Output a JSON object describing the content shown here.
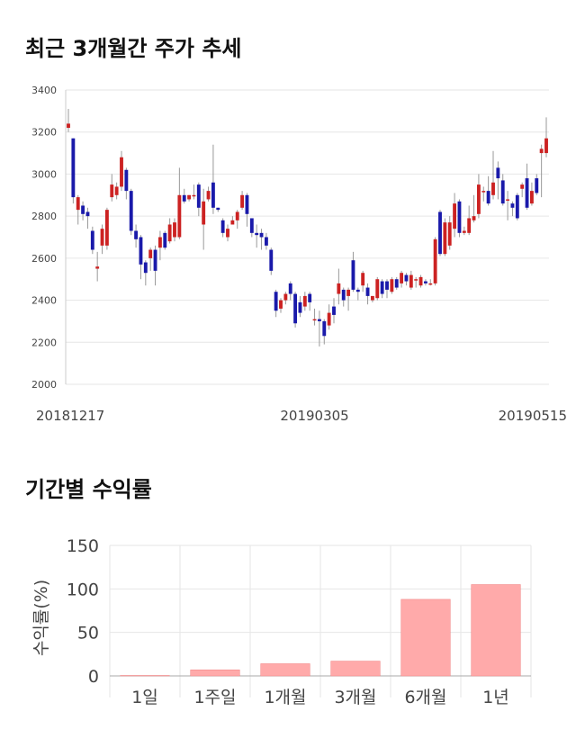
{
  "sections": {
    "price_title": "최근 3개월간 주가 추세",
    "returns_title": "기간별 수익률"
  },
  "colors": {
    "up": "#cc2222",
    "down": "#1a1aaa",
    "wick": "#999999",
    "grid": "#e6e6e6",
    "bar": "#ffaaaa",
    "bar_stroke": "#f08080"
  },
  "chart_data": [
    {
      "type": "candlestick",
      "title": "최근 3개월간 주가 추세",
      "y_ticks": [
        2000,
        2200,
        2400,
        2600,
        2800,
        3000,
        3200,
        3400
      ],
      "ylim": [
        2000,
        3400
      ],
      "x_labels": [
        "20181217",
        "20190305",
        "20190515"
      ],
      "x_label_index": [
        0,
        51,
        99
      ],
      "candles": [
        [
          3220,
          3240,
          3310,
          3200
        ],
        [
          3170,
          2890,
          3170,
          2860
        ],
        [
          2830,
          2890,
          2900,
          2760
        ],
        [
          2850,
          2810,
          2870,
          2780
        ],
        [
          2820,
          2800,
          2840,
          2740
        ],
        [
          2730,
          2640,
          2750,
          2620
        ],
        [
          2550,
          2560,
          2630,
          2490
        ],
        [
          2660,
          2740,
          2760,
          2620
        ],
        [
          2660,
          2830,
          2840,
          2640
        ],
        [
          2890,
          2950,
          3000,
          2870
        ],
        [
          2900,
          2940,
          2960,
          2880
        ],
        [
          2940,
          3080,
          3110,
          2920
        ],
        [
          3020,
          2920,
          3030,
          2880
        ],
        [
          2920,
          2730,
          2930,
          2710
        ],
        [
          2730,
          2690,
          2760,
          2650
        ],
        [
          2700,
          2570,
          2710,
          2500
        ],
        [
          2580,
          2530,
          2590,
          2470
        ],
        [
          2600,
          2640,
          2650,
          2540
        ],
        [
          2640,
          2540,
          2660,
          2470
        ],
        [
          2650,
          2700,
          2730,
          2590
        ],
        [
          2720,
          2650,
          2730,
          2640
        ],
        [
          2680,
          2760,
          2790,
          2670
        ],
        [
          2700,
          2770,
          2790,
          2680
        ],
        [
          2700,
          2900,
          3030,
          2690
        ],
        [
          2900,
          2870,
          2930,
          2860
        ],
        [
          2880,
          2900,
          2900,
          2870
        ],
        [
          2900,
          2900,
          2950,
          2880
        ],
        [
          2950,
          2840,
          2960,
          2800
        ],
        [
          2760,
          2870,
          2930,
          2640
        ],
        [
          2880,
          2920,
          2940,
          2870
        ],
        [
          2960,
          2840,
          3140,
          2810
        ],
        [
          2840,
          2830,
          2840,
          2820
        ],
        [
          2780,
          2720,
          2790,
          2700
        ],
        [
          2700,
          2740,
          2760,
          2680
        ],
        [
          2760,
          2780,
          2800,
          2760
        ],
        [
          2780,
          2820,
          2830,
          2740
        ],
        [
          2840,
          2900,
          2920,
          2830
        ],
        [
          2900,
          2810,
          2910,
          2750
        ],
        [
          2790,
          2720,
          2790,
          2700
        ],
        [
          2720,
          2710,
          2760,
          2650
        ],
        [
          2720,
          2700,
          2740,
          2640
        ],
        [
          2700,
          2660,
          2720,
          2640
        ],
        [
          2640,
          2540,
          2650,
          2520
        ],
        [
          2440,
          2350,
          2450,
          2320
        ],
        [
          2360,
          2400,
          2410,
          2340
        ],
        [
          2400,
          2430,
          2440,
          2380
        ],
        [
          2480,
          2430,
          2490,
          2400
        ],
        [
          2430,
          2290,
          2440,
          2270
        ],
        [
          2390,
          2340,
          2420,
          2320
        ],
        [
          2370,
          2420,
          2440,
          2350
        ],
        [
          2430,
          2390,
          2440,
          2350
        ],
        [
          2310,
          2310,
          2360,
          2280
        ],
        [
          2310,
          2300,
          2350,
          2180
        ],
        [
          2300,
          2230,
          2310,
          2190
        ],
        [
          2280,
          2340,
          2380,
          2260
        ],
        [
          2370,
          2330,
          2410,
          2290
        ],
        [
          2430,
          2480,
          2550,
          2380
        ],
        [
          2450,
          2400,
          2460,
          2370
        ],
        [
          2420,
          2450,
          2460,
          2350
        ],
        [
          2590,
          2450,
          2630,
          2440
        ],
        [
          2450,
          2440,
          2460,
          2400
        ],
        [
          2470,
          2530,
          2540,
          2440
        ],
        [
          2460,
          2420,
          2480,
          2380
        ],
        [
          2400,
          2420,
          2420,
          2390
        ],
        [
          2410,
          2500,
          2510,
          2400
        ],
        [
          2490,
          2430,
          2500,
          2410
        ],
        [
          2490,
          2450,
          2500,
          2410
        ],
        [
          2440,
          2500,
          2510,
          2430
        ],
        [
          2500,
          2460,
          2510,
          2450
        ],
        [
          2480,
          2530,
          2540,
          2460
        ],
        [
          2520,
          2490,
          2530,
          2470
        ],
        [
          2460,
          2520,
          2540,
          2450
        ],
        [
          2500,
          2500,
          2510,
          2460
        ],
        [
          2470,
          2510,
          2520,
          2460
        ],
        [
          2490,
          2480,
          2500,
          2470
        ],
        [
          2480,
          2480,
          2500,
          2470
        ],
        [
          2480,
          2690,
          2700,
          2470
        ],
        [
          2820,
          2620,
          2830,
          2610
        ],
        [
          2620,
          2770,
          2790,
          2610
        ],
        [
          2660,
          2770,
          2800,
          2640
        ],
        [
          2740,
          2860,
          2910,
          2700
        ],
        [
          2870,
          2720,
          2880,
          2700
        ],
        [
          2720,
          2730,
          2750,
          2710
        ],
        [
          2720,
          2790,
          2850,
          2710
        ],
        [
          2780,
          2800,
          2900,
          2770
        ],
        [
          2810,
          2950,
          3000,
          2790
        ],
        [
          2920,
          2920,
          2940,
          2870
        ],
        [
          2920,
          2860,
          2990,
          2850
        ],
        [
          2900,
          2960,
          3110,
          2880
        ],
        [
          3030,
          2980,
          3060,
          2880
        ],
        [
          2970,
          2860,
          3000,
          2850
        ],
        [
          2880,
          2880,
          2920,
          2780
        ],
        [
          2860,
          2840,
          2870,
          2800
        ],
        [
          2900,
          2790,
          2910,
          2780
        ],
        [
          2930,
          2950,
          2960,
          2890
        ],
        [
          2980,
          2840,
          3050,
          2830
        ],
        [
          2860,
          2920,
          2960,
          2850
        ],
        [
          2980,
          2910,
          3000,
          2900
        ],
        [
          3100,
          3120,
          3140,
          2890
        ],
        [
          3100,
          3170,
          3270,
          3080
        ]
      ]
    },
    {
      "type": "bar",
      "title": "기간별 수익률",
      "categories": [
        "1일",
        "1주일",
        "1개월",
        "3개월",
        "6개월",
        "1년"
      ],
      "values": [
        0.5,
        7,
        14,
        17,
        88,
        105
      ],
      "ylabel": "수익률(%)",
      "ylim": [
        0,
        150
      ],
      "y_ticks": [
        0,
        50,
        100,
        150
      ]
    }
  ]
}
